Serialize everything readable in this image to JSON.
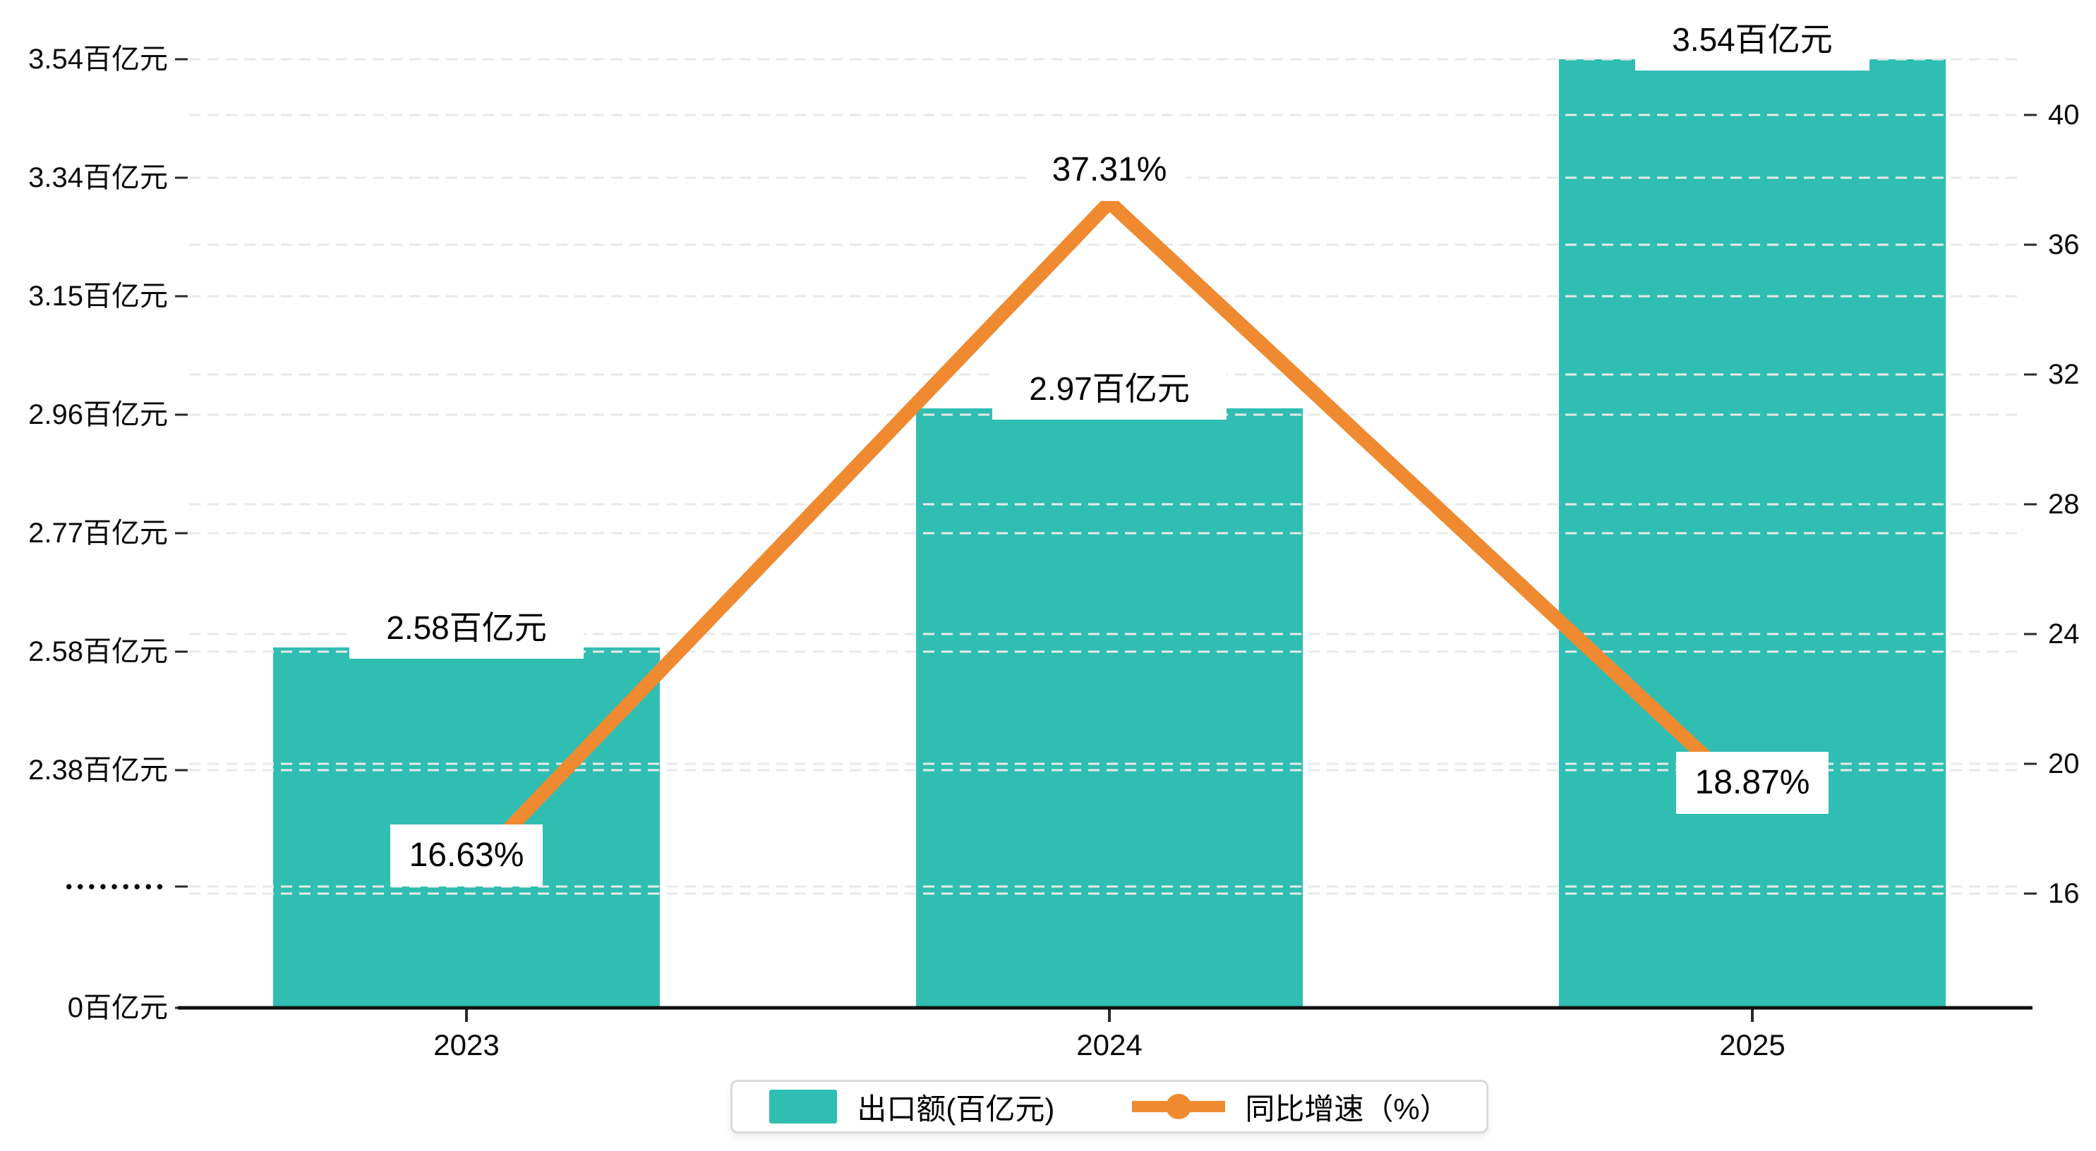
{
  "chart_data": {
    "type": "bar+line",
    "title": "",
    "categories": [
      "2023",
      "2024",
      "2025"
    ],
    "series": [
      {
        "name": "出口额(百亿元)",
        "type": "bar",
        "unit": "百亿元",
        "values": [
          2.58,
          2.97,
          3.54
        ],
        "data_labels": [
          "2.58百亿元",
          "2.97百亿元",
          "3.54百亿元"
        ],
        "color": "#30beb2"
      },
      {
        "name": "同比增速（%）",
        "type": "line",
        "unit": "%",
        "values": [
          16.63,
          37.31,
          18.87
        ],
        "data_labels": [
          "16.63%",
          "37.31%",
          "18.87%"
        ],
        "color": "#ef8a31"
      }
    ],
    "left_axis": {
      "tick_labels": [
        "3.54百亿元",
        "3.34百亿元",
        "3.15百亿元",
        "2.96百亿元",
        "2.77百亿元",
        "2.58百亿元",
        "2.38百亿元",
        "•••••••••",
        "0百亿元"
      ],
      "tick_values": [
        3.54,
        3.34,
        3.15,
        2.96,
        2.77,
        2.58,
        2.38,
        null,
        0
      ],
      "broken_axis": true,
      "min": 0,
      "max": 3.54
    },
    "right_axis": {
      "tick_labels": [
        "40",
        "36",
        "32",
        "28",
        "24",
        "20",
        "16"
      ],
      "tick_values": [
        40,
        36,
        32,
        28,
        24,
        20,
        16
      ],
      "min": 16,
      "max": 42,
      "step": 4
    },
    "grid": "dashed horizontal gridlines at left-axis and right-axis tick levels",
    "legend_position": "bottom-center"
  },
  "legend": {
    "items": [
      {
        "label": "出口额(百亿元)",
        "marker": "teal-bar-swatch"
      },
      {
        "label": "同比增速（%）",
        "marker": "orange-line-dot"
      }
    ]
  },
  "colors": {
    "bar": "#30beb2",
    "line": "#ef8a31",
    "grid": "#e9e9e9",
    "axis": "#111111",
    "tick": "#2a2a2a",
    "label_text": "#000000",
    "legend_border": "#dadada",
    "background": "#ffffff"
  }
}
